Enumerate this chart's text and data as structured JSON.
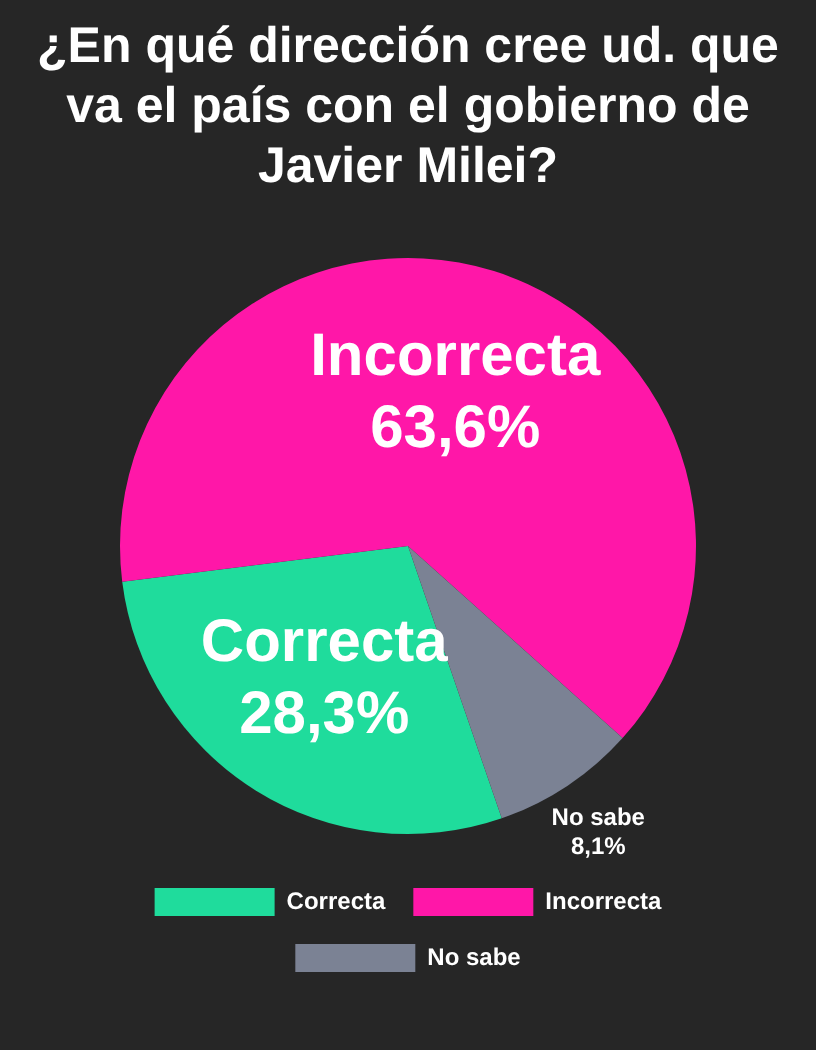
{
  "chart_data": {
    "type": "pie",
    "title": "¿En qué dirección cree ud. que va el país con el gobierno de Javier Milei?",
    "categories": [
      "Correcta",
      "Incorrecta",
      "No sabe"
    ],
    "values": [
      28.3,
      63.6,
      8.1
    ],
    "colors": [
      "#1fdc9c",
      "#ff17a8",
      "#7b8294"
    ],
    "value_labels": [
      "28,3%",
      "63,6%",
      "8,1%"
    ],
    "legend": "bottom"
  }
}
